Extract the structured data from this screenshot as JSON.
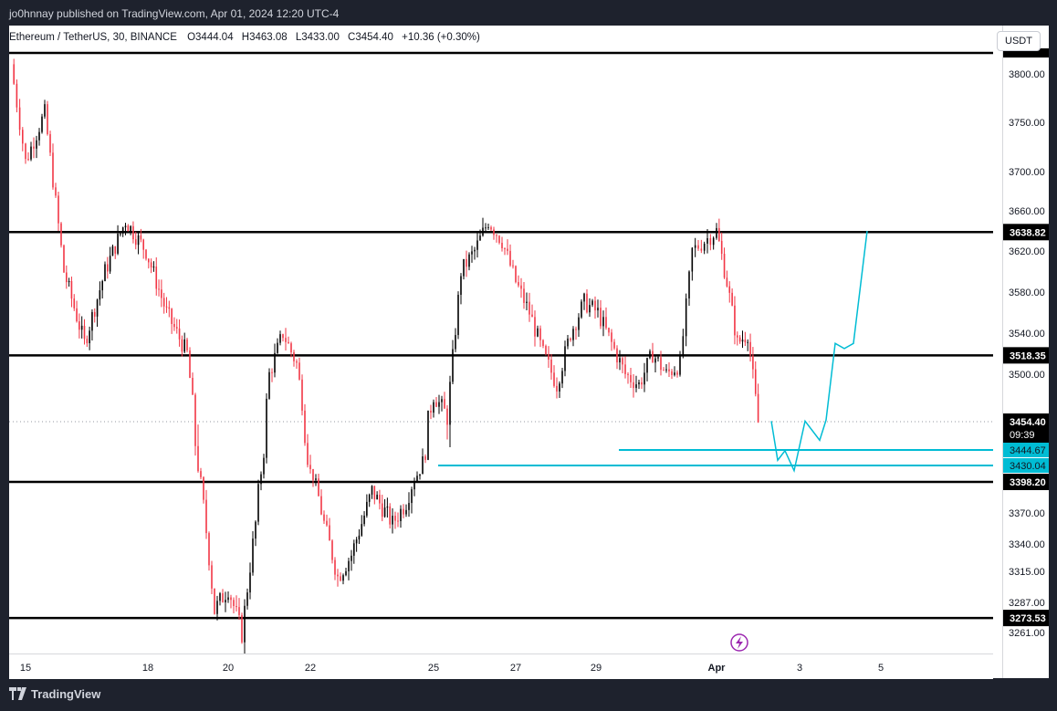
{
  "header": {
    "publisher_line": "jo0hnnay published on TradingView.com, Apr 01, 2024 12:20 UTC-4"
  },
  "legend": {
    "symbol": "Ethereum / TetherUS, 30, BINANCE",
    "open": "O3444.04",
    "high": "H3463.08",
    "low": "L3433.00",
    "close": "C3454.40",
    "change": "+10.36 (+0.30%)"
  },
  "currency_button": "USDT",
  "footer": {
    "brand": "TradingView",
    "logo_icon": "tradingview-logo-icon"
  },
  "colors": {
    "bull": "#000000",
    "bear": "#f23645",
    "projection": "#00bcd4",
    "level_line": "#000000",
    "background": "#ffffff",
    "frame": "#1e222d"
  },
  "chart_data": {
    "type": "candlestick",
    "symbol": "ETHUSDT",
    "interval": "30",
    "exchange": "BINANCE",
    "price_scale": {
      "min": 3250,
      "max": 3840,
      "currency": "USDT",
      "ticks": [
        3800.0,
        3750.0,
        3700.0,
        3660.0,
        3620.0,
        3580.0,
        3540.0,
        3500.0,
        3370.0,
        3340.0,
        3315.0,
        3287.0,
        3261.0
      ]
    },
    "time_axis": {
      "labels": [
        "15",
        "18",
        "20",
        "22",
        "25",
        "27",
        "29",
        "Apr",
        "3",
        "5"
      ]
    },
    "horizontal_levels": [
      3844.0,
      3638.82,
      3518.35,
      3398.2,
      3273.53
    ],
    "level_labels": [
      "3638.82",
      "3518.35",
      "3398.20",
      "3273.53"
    ],
    "current_price": {
      "price": "3454.40",
      "countdown": "09:39"
    },
    "zone_lines": [
      {
        "price": 3444.67,
        "label": "3444.67"
      },
      {
        "price": 3430.04,
        "label": "3430.04"
      }
    ],
    "price_path": [
      {
        "x": "Mar 14",
        "y": 3810
      },
      {
        "x": "Mar 15",
        "y": 3710
      },
      {
        "x": "Mar 15",
        "y": 3760
      },
      {
        "x": "Mar 16",
        "y": 3600
      },
      {
        "x": "Mar 16",
        "y": 3530
      },
      {
        "x": "Mar 17",
        "y": 3600
      },
      {
        "x": "Mar 17",
        "y": 3650
      },
      {
        "x": "Mar 18",
        "y": 3620
      },
      {
        "x": "Mar 18",
        "y": 3560
      },
      {
        "x": "Mar 19",
        "y": 3520
      },
      {
        "x": "Mar 19",
        "y": 3400
      },
      {
        "x": "Mar 19",
        "y": 3280
      },
      {
        "x": "Mar 20",
        "y": 3300
      },
      {
        "x": "Mar 20",
        "y": 3260
      },
      {
        "x": "Mar 20",
        "y": 3360
      },
      {
        "x": "Mar 21",
        "y": 3500
      },
      {
        "x": "Mar 21",
        "y": 3540
      },
      {
        "x": "Mar 21",
        "y": 3510
      },
      {
        "x": "Mar 22",
        "y": 3420
      },
      {
        "x": "Mar 22",
        "y": 3360
      },
      {
        "x": "Mar 22",
        "y": 3310
      },
      {
        "x": "Mar 23",
        "y": 3330
      },
      {
        "x": "Mar 23",
        "y": 3390
      },
      {
        "x": "Mar 24",
        "y": 3360
      },
      {
        "x": "Mar 24",
        "y": 3380
      },
      {
        "x": "Mar 24",
        "y": 3420
      },
      {
        "x": "Mar 25",
        "y": 3480
      },
      {
        "x": "Mar 25",
        "y": 3460
      },
      {
        "x": "Mar 25",
        "y": 3600
      },
      {
        "x": "Mar 26",
        "y": 3620
      },
      {
        "x": "Mar 26",
        "y": 3650
      },
      {
        "x": "Mar 26",
        "y": 3630
      },
      {
        "x": "Mar 27",
        "y": 3590
      },
      {
        "x": "Mar 27",
        "y": 3560
      },
      {
        "x": "Mar 27",
        "y": 3520
      },
      {
        "x": "Mar 28",
        "y": 3490
      },
      {
        "x": "Mar 28",
        "y": 3540
      },
      {
        "x": "Mar 28",
        "y": 3570
      },
      {
        "x": "Mar 29",
        "y": 3560
      },
      {
        "x": "Mar 29",
        "y": 3530
      },
      {
        "x": "Mar 29",
        "y": 3500
      },
      {
        "x": "Mar 30",
        "y": 3490
      },
      {
        "x": "Mar 30",
        "y": 3520
      },
      {
        "x": "Mar 30",
        "y": 3500
      },
      {
        "x": "Mar 31",
        "y": 3510
      },
      {
        "x": "Mar 31",
        "y": 3620
      },
      {
        "x": "Mar 31",
        "y": 3630
      },
      {
        "x": "Apr 1",
        "y": 3640
      },
      {
        "x": "Apr 1",
        "y": 3590
      },
      {
        "x": "Apr 1",
        "y": 3530
      },
      {
        "x": "Apr 1",
        "y": 3540
      },
      {
        "x": "Apr 1",
        "y": 3454
      }
    ],
    "projection_path": [
      {
        "x": "Apr 2",
        "y": 3455
      },
      {
        "x": "Apr 2",
        "y": 3435
      },
      {
        "x": "Apr 2",
        "y": 3444
      },
      {
        "x": "Apr 3",
        "y": 3420
      },
      {
        "x": "Apr 3",
        "y": 3455
      },
      {
        "x": "Apr 3",
        "y": 3448
      },
      {
        "x": "Apr 3",
        "y": 3456
      },
      {
        "x": "Apr 4",
        "y": 3530
      },
      {
        "x": "Apr 4",
        "y": 3525
      },
      {
        "x": "Apr 4",
        "y": 3530
      },
      {
        "x": "Apr 4",
        "y": 3640
      }
    ]
  }
}
